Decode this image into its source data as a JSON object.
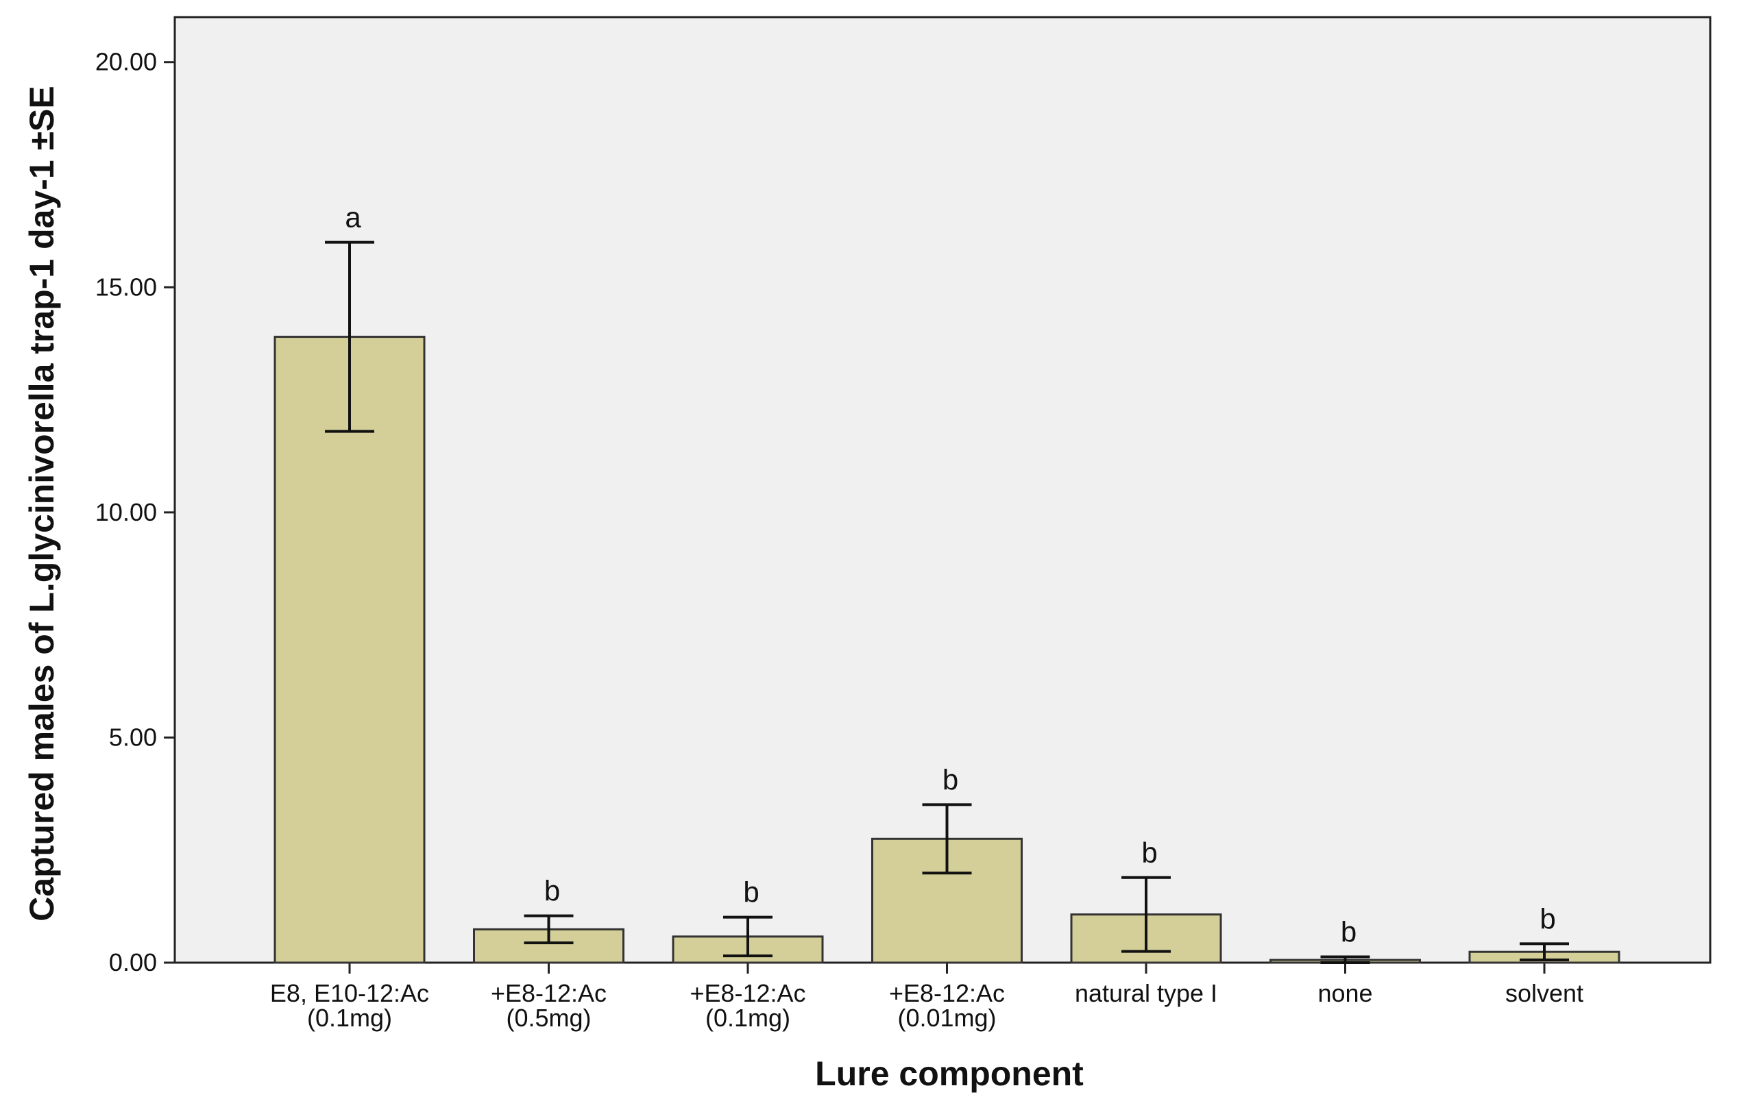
{
  "chart_data": {
    "type": "bar",
    "title": "",
    "xlabel": "Lure component",
    "ylabel": "Captured males of L.glycinivorella trap-1 day-1 ±SE",
    "ylim": [
      0,
      21
    ],
    "yticks": [
      "0.00",
      "5.00",
      "10.00",
      "15.00",
      "20.00"
    ],
    "ytick_values": [
      0,
      5,
      10,
      15,
      20
    ],
    "categories": [
      [
        "E8, E10-12:Ac",
        "(0.1mg)"
      ],
      [
        "+E8-12:Ac",
        "(0.5mg)"
      ],
      [
        "+E8-12:Ac",
        "(0.1mg)"
      ],
      [
        "+E8-12:Ac",
        "(0.01mg)"
      ],
      [
        "natural type I"
      ],
      [
        "none"
      ],
      [
        "solvent"
      ]
    ],
    "values": [
      13.9,
      0.74,
      0.58,
      2.75,
      1.07,
      0.06,
      0.24
    ],
    "errors": [
      2.1,
      0.3,
      0.43,
      0.76,
      0.82,
      0.07,
      0.18
    ],
    "significance": [
      "a",
      "b",
      "b",
      "b",
      "b",
      "b",
      "b"
    ],
    "bar_color": "#d4cf98",
    "bar_edge_color": "#333333",
    "plot_background": "#f0f0f0",
    "grid": false
  }
}
